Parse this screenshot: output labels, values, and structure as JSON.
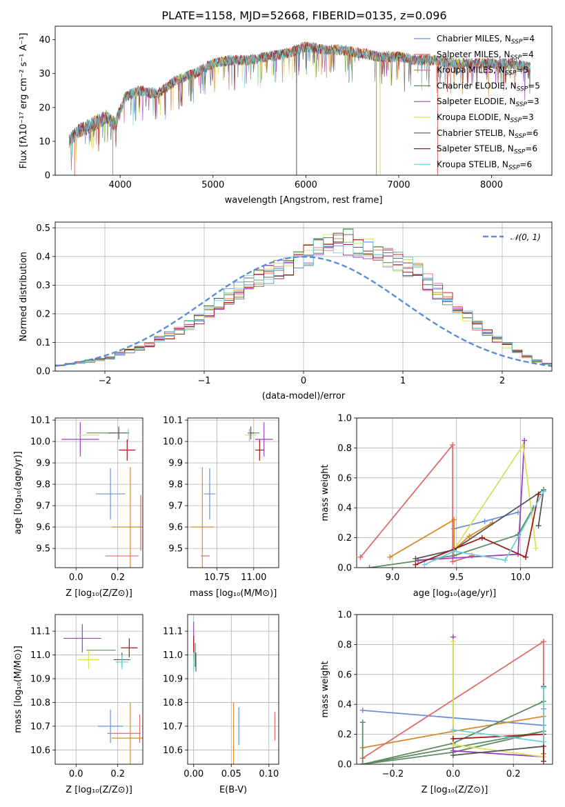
{
  "figure": {
    "title": "PLATE=1158, MJD=52668, FIBERID=0135, z=0.096"
  },
  "chart_data": [
    {
      "id": "spectrum",
      "type": "line",
      "xlabel": "wavelength [Angstrom, rest frame]",
      "ylabel": "Flux [fλ10⁻¹⁷ erg cm⁻² s⁻¹ A⁻¹]",
      "xlim": [
        3300,
        8650
      ],
      "ylim": [
        0,
        44
      ],
      "xticks": [
        4000,
        5000,
        6000,
        7000,
        8000
      ],
      "yticks": [
        0,
        10,
        20,
        30,
        40
      ],
      "anchors_x": [
        3450,
        3550,
        3700,
        3850,
        3950,
        4050,
        4200,
        4400,
        4600,
        4800,
        5000,
        5200,
        5400,
        5600,
        5800,
        6000,
        6200,
        6400,
        6600,
        6800,
        7000,
        7200,
        7400,
        7600,
        7800,
        8000,
        8200,
        8400
      ],
      "anchors_y": [
        10,
        13,
        15,
        17,
        15,
        23,
        25,
        24,
        28,
        30,
        33,
        34,
        34,
        35,
        36,
        38,
        37,
        37,
        36,
        35,
        35,
        34,
        34,
        33,
        33,
        33,
        33,
        32
      ],
      "legend": [
        {
          "label": "Chabrier MILES, N",
          "sub": "SSP",
          "suffix": "=4",
          "color": "#6b8fdc"
        },
        {
          "label": "Salpeter MILES, N",
          "sub": "SSP",
          "suffix": "=4",
          "color": "#e06a6a"
        },
        {
          "label": "Kroupa MILES, N",
          "sub": "SSP",
          "suffix": "=5",
          "color": "#d88a2a"
        },
        {
          "label": "Chabrier ELODIE, N",
          "sub": "SSP",
          "suffix": "=5",
          "color": "#5f8a63"
        },
        {
          "label": "Salpeter ELODIE, N",
          "sub": "SSP",
          "suffix": "=3",
          "color": "#9b3fbf"
        },
        {
          "label": "Kroupa ELODIE, N",
          "sub": "SSP",
          "suffix": "=3",
          "color": "#d9e05a"
        },
        {
          "label": "Chabrier STELIB, N",
          "sub": "SSP",
          "suffix": "=6",
          "color": "#555555"
        },
        {
          "label": "Salpeter STELIB, N",
          "sub": "SSP",
          "suffix": "=6",
          "color": "#a01818"
        },
        {
          "label": "Kroupa STELIB, N",
          "sub": "SSP",
          "suffix": "=6",
          "color": "#6fd0d8"
        }
      ],
      "drops": [
        {
          "x": 3510,
          "color": "#e06a6a"
        },
        {
          "x": 3920,
          "color": "#d88a2a"
        },
        {
          "x": 5900,
          "color": "#555555"
        },
        {
          "x": 6760,
          "color": "#d88a2a"
        },
        {
          "x": 6800,
          "color": "#d9e05a"
        },
        {
          "x": 7420,
          "color": "#e06a6a"
        }
      ]
    },
    {
      "id": "residuals",
      "type": "histogram",
      "xlabel": "(data-model)/error",
      "ylabel": "Normed distribution",
      "xlim": [
        -2.5,
        2.5
      ],
      "ylim": [
        0,
        0.52
      ],
      "xticks": [
        -2,
        -1,
        0,
        1,
        2
      ],
      "yticks": [
        0.0,
        0.1,
        0.2,
        0.3,
        0.4,
        0.5
      ],
      "bin_width": 0.1,
      "bins_start": -2.5,
      "base": [
        0.02,
        0.025,
        0.03,
        0.035,
        0.04,
        0.045,
        0.06,
        0.07,
        0.08,
        0.09,
        0.11,
        0.125,
        0.14,
        0.16,
        0.185,
        0.21,
        0.23,
        0.26,
        0.28,
        0.3,
        0.32,
        0.34,
        0.36,
        0.375,
        0.39,
        0.4,
        0.42,
        0.44,
        0.46,
        0.45,
        0.44,
        0.42,
        0.41,
        0.4,
        0.38,
        0.36,
        0.34,
        0.31,
        0.28,
        0.25,
        0.22,
        0.19,
        0.16,
        0.135,
        0.11,
        0.09,
        0.07,
        0.05,
        0.035,
        0.025
      ],
      "gaussian_label": "𝒩(0, 1)",
      "gaussian_color": "#5b8cd8"
    },
    {
      "id": "age-vs-Z",
      "type": "errorbar",
      "xlabel": "Z [log₁₀(Z/Z⊙)]",
      "ylabel": "age  [log₁₀(age/yr)]",
      "xlim": [
        -0.1,
        0.32
      ],
      "ylim": [
        9.41,
        10.11
      ],
      "xticks": [
        0.0,
        0.2
      ],
      "yticks": [
        9.5,
        9.6,
        9.7,
        9.8,
        9.9,
        10.0,
        10.1
      ],
      "points": [
        {
          "color": "#6b8fdc",
          "x": 0.165,
          "y": 9.755,
          "ex": 0.07,
          "ey": 0.12
        },
        {
          "color": "#e06a6a",
          "x": 0.22,
          "y": 9.465,
          "ex": 0.08,
          "ey": 0.0
        },
        {
          "color": "#e06a6a",
          "x": 0.31,
          "y": 9.62,
          "ex": 0.0,
          "ey": 0.13
        },
        {
          "color": "#d88a2a",
          "x": 0.26,
          "y": 9.6,
          "ex": 0.09,
          "ey": 0.28
        },
        {
          "color": "#5f8a63",
          "x": 0.12,
          "y": 10.04,
          "ex": 0.07,
          "ey": 0.0
        },
        {
          "color": "#9b3fbf",
          "x": 0.02,
          "y": 10.01,
          "ex": 0.09,
          "ey": 0.08
        },
        {
          "color": "#d9e05a",
          "x": 0.06,
          "y": 10.03,
          "ex": 0.05,
          "ey": 0.0
        },
        {
          "color": "#555555",
          "x": 0.205,
          "y": 10.04,
          "ex": 0.05,
          "ey": 0.03
        },
        {
          "color": "#a01818",
          "x": 0.245,
          "y": 9.96,
          "ex": 0.04,
          "ey": 0.05
        },
        {
          "color": "#6fd0d8",
          "x": 0.25,
          "y": 10.03,
          "ex": 0.0,
          "ey": 0.03
        }
      ]
    },
    {
      "id": "age-vs-mass",
      "type": "errorbar",
      "xlabel": "mass [log₁₀(M/M⊙)]",
      "ylabel": "",
      "xlim": [
        10.55,
        11.17
      ],
      "ylim": [
        9.41,
        10.11
      ],
      "xticks": [
        10.75,
        11.0
      ],
      "yticks": [
        9.5,
        9.6,
        9.7,
        9.8,
        9.9,
        10.0,
        10.1
      ],
      "points": [
        {
          "color": "#6b8fdc",
          "x": 10.7,
          "y": 9.755,
          "ex": 0.04,
          "ey": 0.12
        },
        {
          "color": "#e06a6a",
          "x": 10.67,
          "y": 9.465,
          "ex": 0.03,
          "ey": 0.0
        },
        {
          "color": "#d88a2a",
          "x": 10.65,
          "y": 9.6,
          "ex": 0.08,
          "ey": 0.28
        },
        {
          "color": "#5f8a63",
          "x": 11.0,
          "y": 10.04,
          "ex": 0.04,
          "ey": 0.0
        },
        {
          "color": "#9b3fbf",
          "x": 11.07,
          "y": 10.01,
          "ex": 0.06,
          "ey": 0.08
        },
        {
          "color": "#d9e05a",
          "x": 10.98,
          "y": 10.03,
          "ex": 0.04,
          "ey": 0.0
        },
        {
          "color": "#555555",
          "x": 10.98,
          "y": 10.04,
          "ex": 0.02,
          "ey": 0.03
        },
        {
          "color": "#a01818",
          "x": 11.04,
          "y": 9.96,
          "ex": 0.03,
          "ey": 0.05
        },
        {
          "color": "#6fd0d8",
          "x": 10.97,
          "y": 10.03,
          "ex": 0.0,
          "ey": 0.03
        }
      ]
    },
    {
      "id": "weight-vs-age",
      "type": "line",
      "xlabel": "age  [log₁₀(age/yr)]",
      "ylabel": "mass weight",
      "xlim": [
        8.72,
        10.25
      ],
      "ylim": [
        0,
        1.0
      ],
      "xticks": [
        9.0,
        9.5,
        10.0
      ],
      "yticks": [
        0.0,
        0.2,
        0.4,
        0.6,
        0.8,
        1.0
      ],
      "series": [
        {
          "color": "#6b8fdc",
          "x": [
            9.48,
            9.72,
            9.98
          ],
          "y": [
            0.26,
            0.31,
            0.37
          ]
        },
        {
          "color": "#d88a2a",
          "x": [
            8.98,
            9.48,
            9.48,
            9.6,
            9.78
          ],
          "y": [
            0.07,
            0.32,
            0.12,
            0.21,
            0.3
          ]
        },
        {
          "color": "#e06a6a",
          "x": [
            8.75,
            9.47,
            9.47,
            9.62
          ],
          "y": [
            0.07,
            0.82,
            0.04,
            0.08
          ]
        },
        {
          "color": "#5f8a63",
          "x": [
            8.82,
            9.48,
            9.98,
            10.1
          ],
          "y": [
            0.0,
            0.08,
            0.22,
            0.4
          ]
        },
        {
          "color": "#9b3fbf",
          "x": [
            9.2,
            9.98,
            10.03
          ],
          "y": [
            0.05,
            0.09,
            0.85
          ]
        },
        {
          "color": "#d9e05a",
          "x": [
            9.48,
            10.02,
            10.12
          ],
          "y": [
            0.12,
            0.82,
            0.13
          ]
        },
        {
          "color": "#555555",
          "x": [
            9.18,
            9.48,
            10.18,
            10.14
          ],
          "y": [
            0.06,
            0.12,
            0.52,
            0.28
          ]
        },
        {
          "color": "#a01818",
          "x": [
            9.18,
            9.7,
            10.04,
            10.14
          ],
          "y": [
            0.02,
            0.2,
            0.07,
            0.49
          ]
        },
        {
          "color": "#6fd0d8",
          "x": [
            9.25,
            9.48,
            9.88,
            10.18
          ],
          "y": [
            0.02,
            0.11,
            0.05,
            0.51
          ]
        }
      ]
    },
    {
      "id": "mass-vs-Z",
      "type": "errorbar",
      "xlabel": "Z [log₁₀(Z/Z⊙)]",
      "ylabel": "mass [log₁₀(M/M⊙)]",
      "xlim": [
        -0.1,
        0.32
      ],
      "ylim": [
        10.54,
        11.17
      ],
      "xticks": [
        0.0,
        0.2
      ],
      "yticks": [
        10.6,
        10.7,
        10.8,
        10.9,
        11.0,
        11.1
      ],
      "points": [
        {
          "color": "#6b8fdc",
          "x": 0.165,
          "y": 10.7,
          "ex": 0.06,
          "ey": 0.07
        },
        {
          "color": "#e06a6a",
          "x": 0.23,
          "y": 10.67,
          "ex": 0.08,
          "ey": 0.0
        },
        {
          "color": "#e06a6a",
          "x": 0.305,
          "y": 10.69,
          "ex": 0.0,
          "ey": 0.06
        },
        {
          "color": "#d88a2a",
          "x": 0.26,
          "y": 10.65,
          "ex": 0.09,
          "ey": 0.15
        },
        {
          "color": "#5f8a63",
          "x": 0.12,
          "y": 11.02,
          "ex": 0.07,
          "ey": 0.0
        },
        {
          "color": "#9b3fbf",
          "x": 0.03,
          "y": 11.07,
          "ex": 0.09,
          "ey": 0.06
        },
        {
          "color": "#d9e05a",
          "x": 0.06,
          "y": 10.98,
          "ex": 0.05,
          "ey": 0.04
        },
        {
          "color": "#555555",
          "x": 0.22,
          "y": 10.98,
          "ex": 0.04,
          "ey": 0.03
        },
        {
          "color": "#a01818",
          "x": 0.255,
          "y": 11.03,
          "ex": 0.04,
          "ey": 0.04
        },
        {
          "color": "#6fd0d8",
          "x": 0.22,
          "y": 10.97,
          "ex": 0.03,
          "ey": 0.03
        }
      ]
    },
    {
      "id": "mass-vs-ebv",
      "type": "errorbar",
      "xlabel": "E(B-V)",
      "ylabel": "",
      "xlim": [
        -0.008,
        0.113
      ],
      "ylim": [
        10.54,
        11.17
      ],
      "xticks": [
        0.0,
        0.05,
        0.1
      ],
      "yticks": [
        10.6,
        10.7,
        10.8,
        10.9,
        11.0,
        11.1
      ],
      "points": [
        {
          "color": "#6b8fdc",
          "x": 0.06,
          "y": 10.7,
          "ex": 0.0,
          "ey": 0.08
        },
        {
          "color": "#d88a2a",
          "x": 0.053,
          "y": 10.65,
          "ex": 0.0,
          "ey": 0.15
        },
        {
          "color": "#e06a6a",
          "x": 0.108,
          "y": 10.7,
          "ex": 0.0,
          "ey": 0.06
        },
        {
          "color": "#5f8a63",
          "x": 0.002,
          "y": 11.0,
          "ex": 0.0,
          "ey": 0.05
        },
        {
          "color": "#9b3fbf",
          "x": 0.0,
          "y": 11.07,
          "ex": 0.0,
          "ey": 0.07
        },
        {
          "color": "#d9e05a",
          "x": 0.0,
          "y": 10.98,
          "ex": 0.0,
          "ey": 0.04
        },
        {
          "color": "#555555",
          "x": 0.003,
          "y": 10.97,
          "ex": 0.0,
          "ey": 0.04
        },
        {
          "color": "#a01818",
          "x": 0.0,
          "y": 11.03,
          "ex": 0.0,
          "ey": 0.05
        },
        {
          "color": "#6fd0d8",
          "x": 0.0,
          "y": 10.97,
          "ex": 0.0,
          "ey": 0.04
        }
      ]
    },
    {
      "id": "weight-vs-Z",
      "type": "line",
      "xlabel": "Z [log₁₀(Z/Z⊙)]",
      "ylabel": "mass weight",
      "xlim": [
        -0.32,
        0.33
      ],
      "ylim": [
        0,
        1.0
      ],
      "xticks": [
        -0.2,
        0.0,
        0.2
      ],
      "yticks": [
        0.0,
        0.2,
        0.4,
        0.6,
        0.8,
        1.0
      ],
      "series": [
        {
          "color": "#6b8fdc",
          "x": [
            -0.3,
            0.3,
            0.3
          ],
          "y": [
            0.36,
            0.26,
            0.37
          ]
        },
        {
          "color": "#d88a2a",
          "x": [
            -0.3,
            0.0,
            0.3
          ],
          "y": [
            0.11,
            0.22,
            0.32
          ]
        },
        {
          "color": "#e06a6a",
          "x": [
            -0.3,
            0.3,
            0.3
          ],
          "y": [
            0.04,
            0.82,
            0.07
          ]
        },
        {
          "color": "#5f8a63",
          "x": [
            -0.3,
            -0.3,
            0.0,
            0.3,
            -0.3,
            0.0,
            0.3
          ],
          "y": [
            0.28,
            0.0,
            0.08,
            0.22,
            0.0,
            0.14,
            0.42
          ]
        },
        {
          "color": "#9b3fbf",
          "x": [
            0.0,
            0.0,
            0.3
          ],
          "y": [
            0.85,
            0.09,
            0.05
          ]
        },
        {
          "color": "#d9e05a",
          "x": [
            0.0,
            0.0,
            0.3
          ],
          "y": [
            0.82,
            0.13,
            0.05
          ]
        },
        {
          "color": "#555555",
          "x": [
            0.0,
            0.3,
            0.3
          ],
          "y": [
            0.06,
            0.12,
            0.52
          ]
        },
        {
          "color": "#a01818",
          "x": [
            0.0,
            0.3,
            0.3
          ],
          "y": [
            0.17,
            0.2,
            0.02
          ]
        },
        {
          "color": "#6fd0d8",
          "x": [
            0.0,
            0.3,
            0.3
          ],
          "y": [
            0.23,
            0.15,
            0.51
          ]
        }
      ]
    }
  ]
}
